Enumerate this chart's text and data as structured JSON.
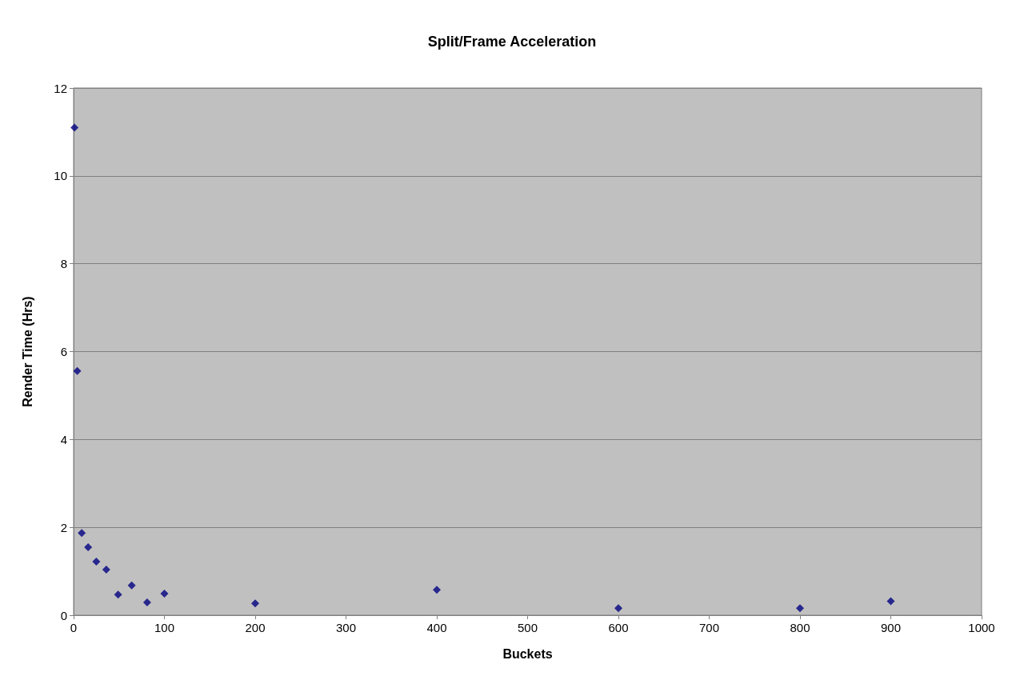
{
  "chart_data": {
    "type": "scatter",
    "title": "Split/Frame Acceleration",
    "xlabel": "Buckets",
    "ylabel": "Render Time (Hrs)",
    "x": [
      1,
      4,
      9,
      16,
      25,
      36,
      49,
      64,
      81,
      100,
      200,
      400,
      600,
      800,
      900
    ],
    "series": [
      {
        "color": "#000080",
        "values": [
          11.1,
          5.56,
          1.87,
          1.55,
          1.22,
          1.04,
          0.47,
          0.68,
          0.29,
          0.49,
          0.27,
          0.58,
          0.16,
          0.16,
          0.32
        ]
      }
    ],
    "xlim": [
      0,
      1000
    ],
    "xticks": [
      0,
      100,
      200,
      300,
      400,
      500,
      600,
      700,
      800,
      900,
      1000
    ],
    "ylim": [
      0,
      12
    ],
    "yticks": [
      0,
      2,
      4,
      6,
      8,
      10,
      12
    ],
    "grid": "y",
    "marker": "diamond"
  }
}
